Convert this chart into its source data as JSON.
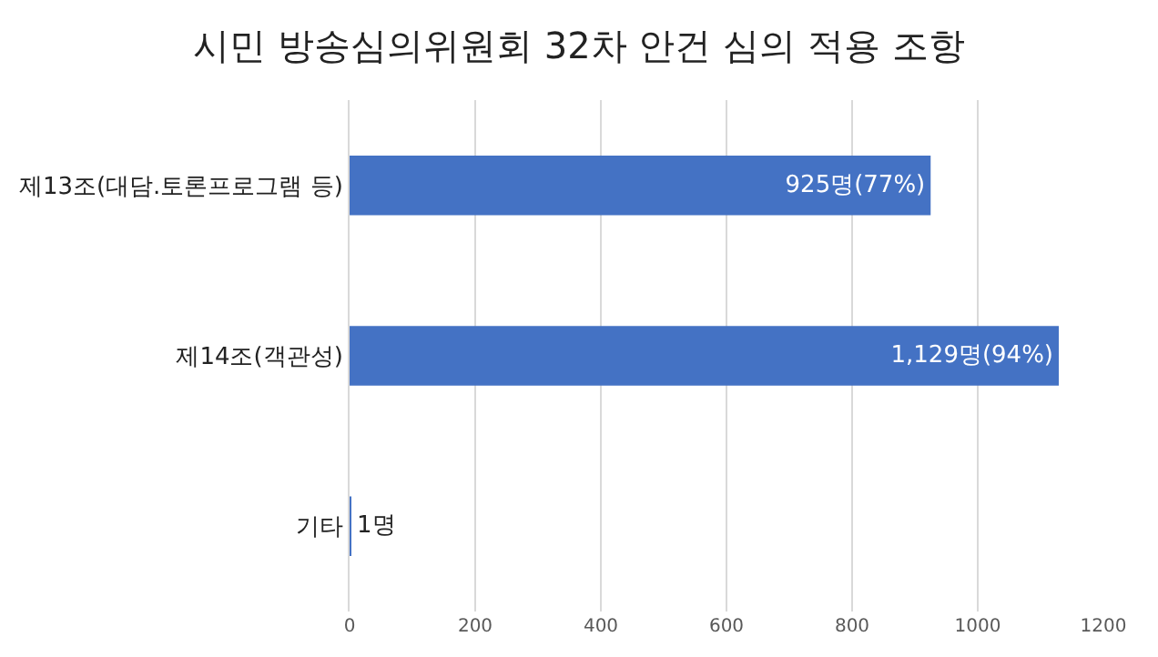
{
  "chart_data": {
    "type": "bar",
    "orientation": "horizontal",
    "title": "시민 방송심의위원회 32차 안건 심의 적용 조항",
    "categories": [
      "제13조(대담.토론프로그램 등)",
      "제14조(객관성)",
      "기타"
    ],
    "values": [
      925,
      1129,
      1
    ],
    "value_labels": [
      "925명(77%)",
      "1,129명(94%)",
      "1명"
    ],
    "color": "#4472c4",
    "xlim": [
      0,
      1200
    ],
    "xticks": [
      0,
      200,
      400,
      600,
      800,
      1000,
      1200
    ],
    "grid": "x"
  }
}
